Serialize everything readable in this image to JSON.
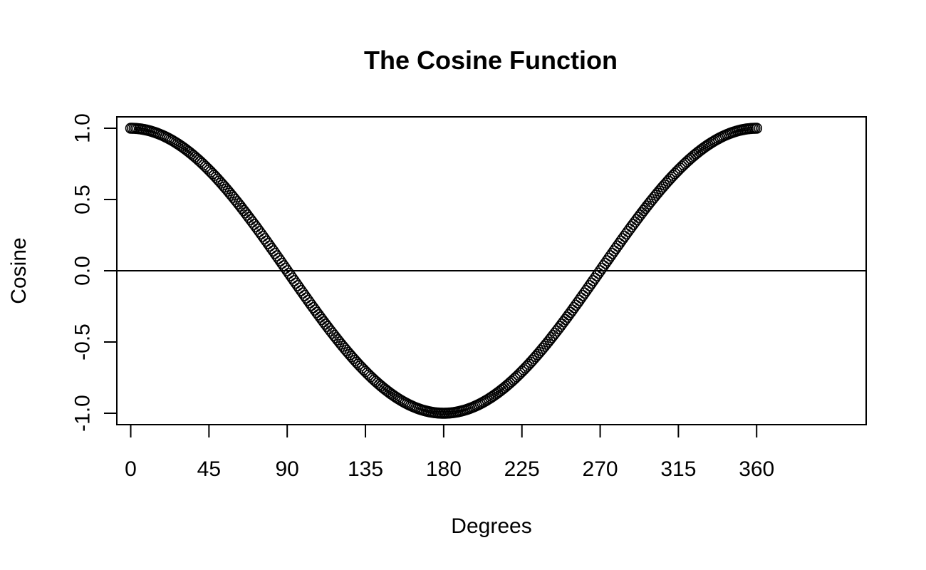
{
  "chart_data": {
    "type": "scatter",
    "title": "The Cosine Function",
    "xlabel": "Degrees",
    "ylabel": "Cosine",
    "xlim": [
      -8,
      423
    ],
    "ylim": [
      -1.08,
      1.08
    ],
    "x_ticks": [
      0,
      45,
      90,
      135,
      180,
      225,
      270,
      315,
      360
    ],
    "x_tick_labels": [
      "0",
      "45",
      "90",
      "135",
      "180",
      "225",
      "270",
      "315",
      "360"
    ],
    "y_ticks": [
      -1.0,
      -0.5,
      0.0,
      0.5,
      1.0
    ],
    "y_tick_labels": [
      "-1.0",
      "-0.5",
      "0.0",
      "0.5",
      "1.0"
    ],
    "reference_line": {
      "orientation": "horizontal",
      "y": 0
    },
    "series": [
      {
        "function": "cos(x degrees)",
        "x_start": 0,
        "x_end": 360,
        "x_step": 1
      }
    ],
    "marker": "open-circle",
    "grid": false,
    "colors": {
      "points": "#000000",
      "axes": "#000000"
    }
  }
}
